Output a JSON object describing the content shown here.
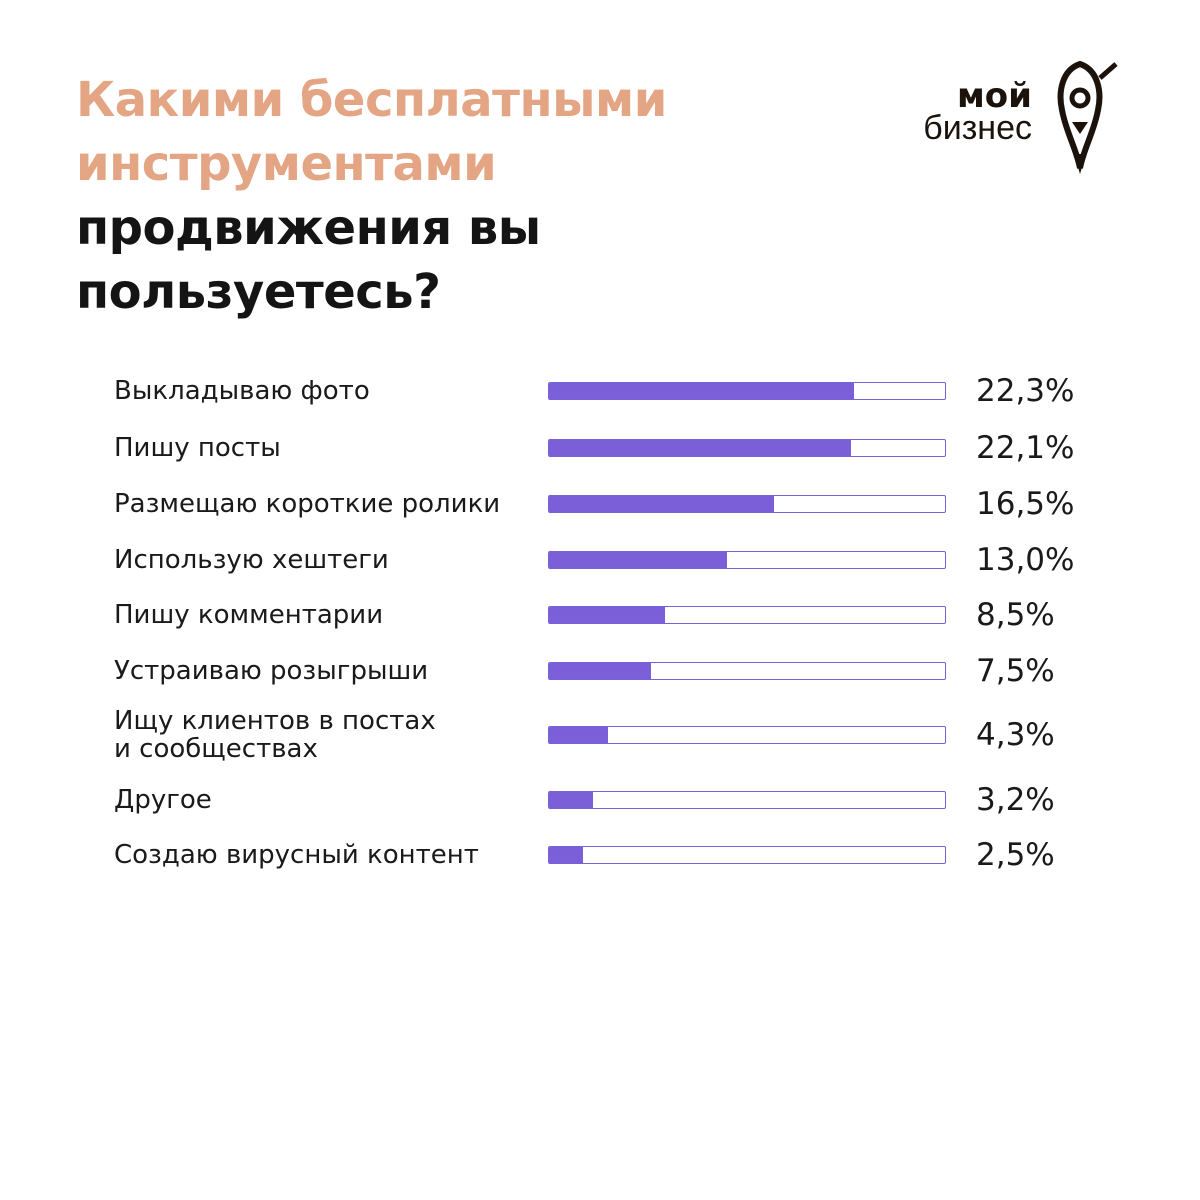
{
  "header": {
    "title_accent": "Какими бесплатными инструментами",
    "title_rest": " продвижения вы пользуетесь?"
  },
  "logo": {
    "line1": "мой",
    "line2": "бизнес",
    "icon": "rocket-pin-icon"
  },
  "colors": {
    "accent": "#e3a583",
    "bar": "#7b5fd9",
    "bar_border": "#7b61d6",
    "text": "#1a1a1a"
  },
  "chart_data": {
    "type": "bar",
    "orientation": "horizontal",
    "categories": [
      "Выкладываю фото",
      "Пишу посты",
      "Размещаю короткие ролики",
      "Использую хештеги",
      "Пишу комментарии",
      "Устраиваю розыгрыши",
      "Ищу клиентов в постах\nи сообществах",
      "Другое",
      "Создаю вирусный контент"
    ],
    "values": [
      22.3,
      22.1,
      16.5,
      13.0,
      8.5,
      7.5,
      4.3,
      3.2,
      2.5
    ],
    "value_labels": [
      "22,3%",
      "22,1%",
      "16,5%",
      "13,0%",
      "8,5%",
      "7,5%",
      "4,3%",
      "3,2%",
      "2,5%"
    ],
    "xlim": [
      0,
      29
    ],
    "grid": false,
    "legend": "none"
  }
}
